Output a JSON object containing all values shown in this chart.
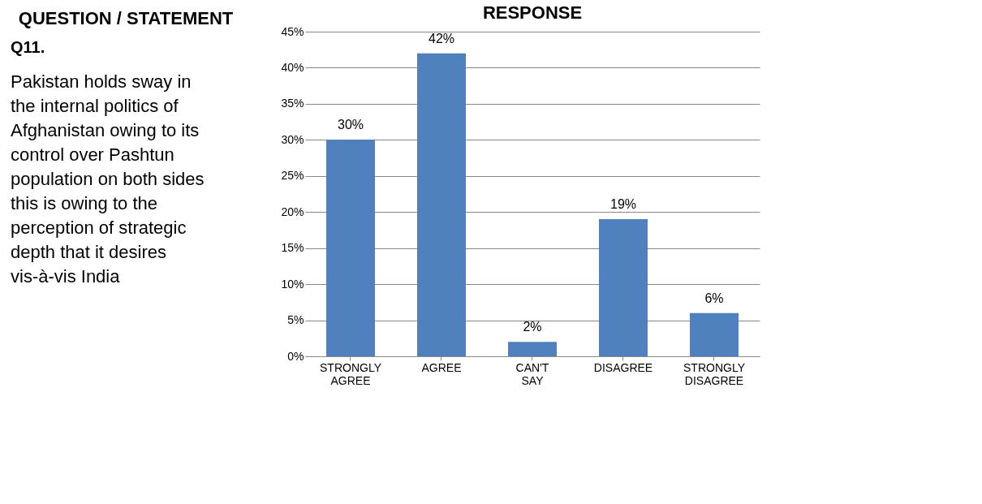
{
  "chart_data": [
    {
      "type": "other",
      "title": "QUESTION / STATEMENT",
      "annotations": [
        "Q11.",
        "Pakistan holds sway in the internal politics of Afghanistan owing to its control over Pashtun population on both sides this is owing to the perception of strategic depth that it desires vis-à-vis India"
      ]
    },
    {
      "type": "bar",
      "title": "RESPONSE",
      "categories": [
        "STRONGLY AGREE",
        "AGREE",
        "CAN'T SAY",
        "DISAGREE",
        "STRONGLY DISAGREE"
      ],
      "values": [
        30,
        42,
        2,
        19,
        6
      ],
      "color": "#4f81bd",
      "ylim": [
        0,
        45
      ],
      "yticks": [
        {
          "value": 0,
          "label": "0%"
        },
        {
          "value": 5,
          "label": "5%"
        },
        {
          "value": 10,
          "label": "10%"
        },
        {
          "value": 15,
          "label": "15%"
        },
        {
          "value": 20,
          "label": "20%"
        },
        {
          "value": 25,
          "label": "25%"
        },
        {
          "value": 30,
          "label": "30%"
        },
        {
          "value": 35,
          "label": "35%"
        },
        {
          "value": 40,
          "label": "40%"
        },
        {
          "value": 45,
          "label": "45%"
        }
      ],
      "grid": "y",
      "value_labels": [
        "30%",
        "42%",
        "2%",
        "19%",
        "6%"
      ]
    }
  ]
}
